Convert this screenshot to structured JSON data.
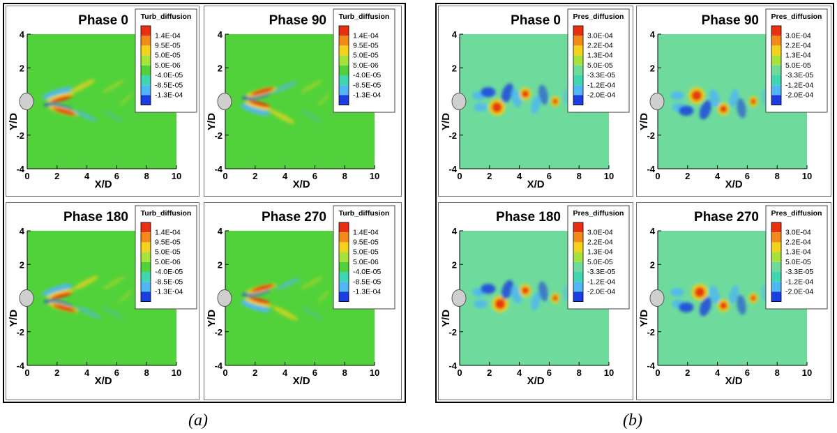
{
  "panel_groups": [
    {
      "caption": "(a)",
      "legend_title": "Turb_diffusion",
      "legend_levels": [
        "1.4E-04",
        "9.5E-05",
        "5.0E-05",
        "5.0E-06",
        "-4.0E-05",
        "-8.5E-05",
        "-1.3E-04"
      ],
      "colors": {
        "background": "#52d23a",
        "pos_strong": "#e83010",
        "pos_mid": "#f2d21a",
        "neg_mid": "#4fb7f2",
        "neg_strong": "#1a3ee0"
      }
    },
    {
      "caption": "(b)",
      "legend_title": "Pres_diffusion",
      "legend_levels": [
        "3.0E-04",
        "2.2E-04",
        "1.3E-04",
        "5.0E-05",
        "-3.3E-05",
        "-1.2E-04",
        "-2.0E-04"
      ],
      "colors": {
        "background": "#6edb9d",
        "pos_strong": "#e83010",
        "pos_mid": "#f2d21a",
        "neg_mid": "#4fb7f2",
        "neg_strong": "#1a3ee0"
      }
    }
  ],
  "chart_data": [
    {
      "type": "heatmap",
      "title": "Phase 0",
      "variable": "Turb_diffusion",
      "xlabel": "X/D",
      "ylabel": "Y/D",
      "xlim": [
        0,
        10
      ],
      "ylim": [
        -4,
        4
      ],
      "xticks": [
        "0",
        "2",
        "4",
        "6",
        "8",
        "10"
      ],
      "yticks": [
        "4",
        "2",
        "0",
        "-2",
        "-4"
      ],
      "phase_deg": 0
    },
    {
      "type": "heatmap",
      "title": "Phase 90",
      "variable": "Turb_diffusion",
      "xlabel": "X/D",
      "ylabel": "Y/D",
      "xlim": [
        0,
        10
      ],
      "ylim": [
        -4,
        4
      ],
      "xticks": [
        "0",
        "2",
        "4",
        "6",
        "8",
        "10"
      ],
      "yticks": [
        "4",
        "2",
        "0",
        "-2",
        "-4"
      ],
      "phase_deg": 90
    },
    {
      "type": "heatmap",
      "title": "Phase 180",
      "variable": "Turb_diffusion",
      "xlabel": "X/D",
      "ylabel": "Y/D",
      "xlim": [
        0,
        10
      ],
      "ylim": [
        -4,
        4
      ],
      "xticks": [
        "0",
        "2",
        "4",
        "6",
        "8",
        "10"
      ],
      "yticks": [
        "4",
        "2",
        "0",
        "-2",
        "-4"
      ],
      "phase_deg": 180
    },
    {
      "type": "heatmap",
      "title": "Phase 270",
      "variable": "Turb_diffusion",
      "xlabel": "X/D",
      "ylabel": "Y/D",
      "xlim": [
        0,
        10
      ],
      "ylim": [
        -4,
        4
      ],
      "xticks": [
        "0",
        "2",
        "4",
        "6",
        "8",
        "10"
      ],
      "yticks": [
        "4",
        "2",
        "0",
        "-2",
        "-4"
      ],
      "phase_deg": 270
    },
    {
      "type": "heatmap",
      "title": "Phase 0",
      "variable": "Pres_diffusion",
      "xlabel": "X/D",
      "ylabel": "Y/D",
      "xlim": [
        0,
        10
      ],
      "ylim": [
        -4,
        4
      ],
      "xticks": [
        "0",
        "2",
        "4",
        "6",
        "8",
        "10"
      ],
      "yticks": [
        "4",
        "2",
        "0",
        "-2",
        "-4"
      ],
      "phase_deg": 0
    },
    {
      "type": "heatmap",
      "title": "Phase 90",
      "variable": "Pres_diffusion",
      "xlabel": "X/D",
      "ylabel": "Y/D",
      "xlim": [
        0,
        10
      ],
      "ylim": [
        -4,
        4
      ],
      "xticks": [
        "0",
        "2",
        "4",
        "6",
        "8",
        "10"
      ],
      "yticks": [
        "4",
        "2",
        "0",
        "-2",
        "-4"
      ],
      "phase_deg": 90
    },
    {
      "type": "heatmap",
      "title": "Phase 180",
      "variable": "Pres_diffusion",
      "xlabel": "X/D",
      "ylabel": "Y/D",
      "xlim": [
        0,
        10
      ],
      "ylim": [
        -4,
        4
      ],
      "xticks": [
        "0",
        "2",
        "4",
        "6",
        "8",
        "10"
      ],
      "yticks": [
        "4",
        "2",
        "0",
        "-2",
        "-4"
      ],
      "phase_deg": 180
    },
    {
      "type": "heatmap",
      "title": "Phase 270",
      "variable": "Pres_diffusion",
      "xlabel": "X/D",
      "ylabel": "Y/D",
      "xlim": [
        0,
        10
      ],
      "ylim": [
        -4,
        4
      ],
      "xticks": [
        "0",
        "2",
        "4",
        "6",
        "8",
        "10"
      ],
      "yticks": [
        "4",
        "2",
        "0",
        "-2",
        "-4"
      ],
      "phase_deg": 270
    }
  ]
}
